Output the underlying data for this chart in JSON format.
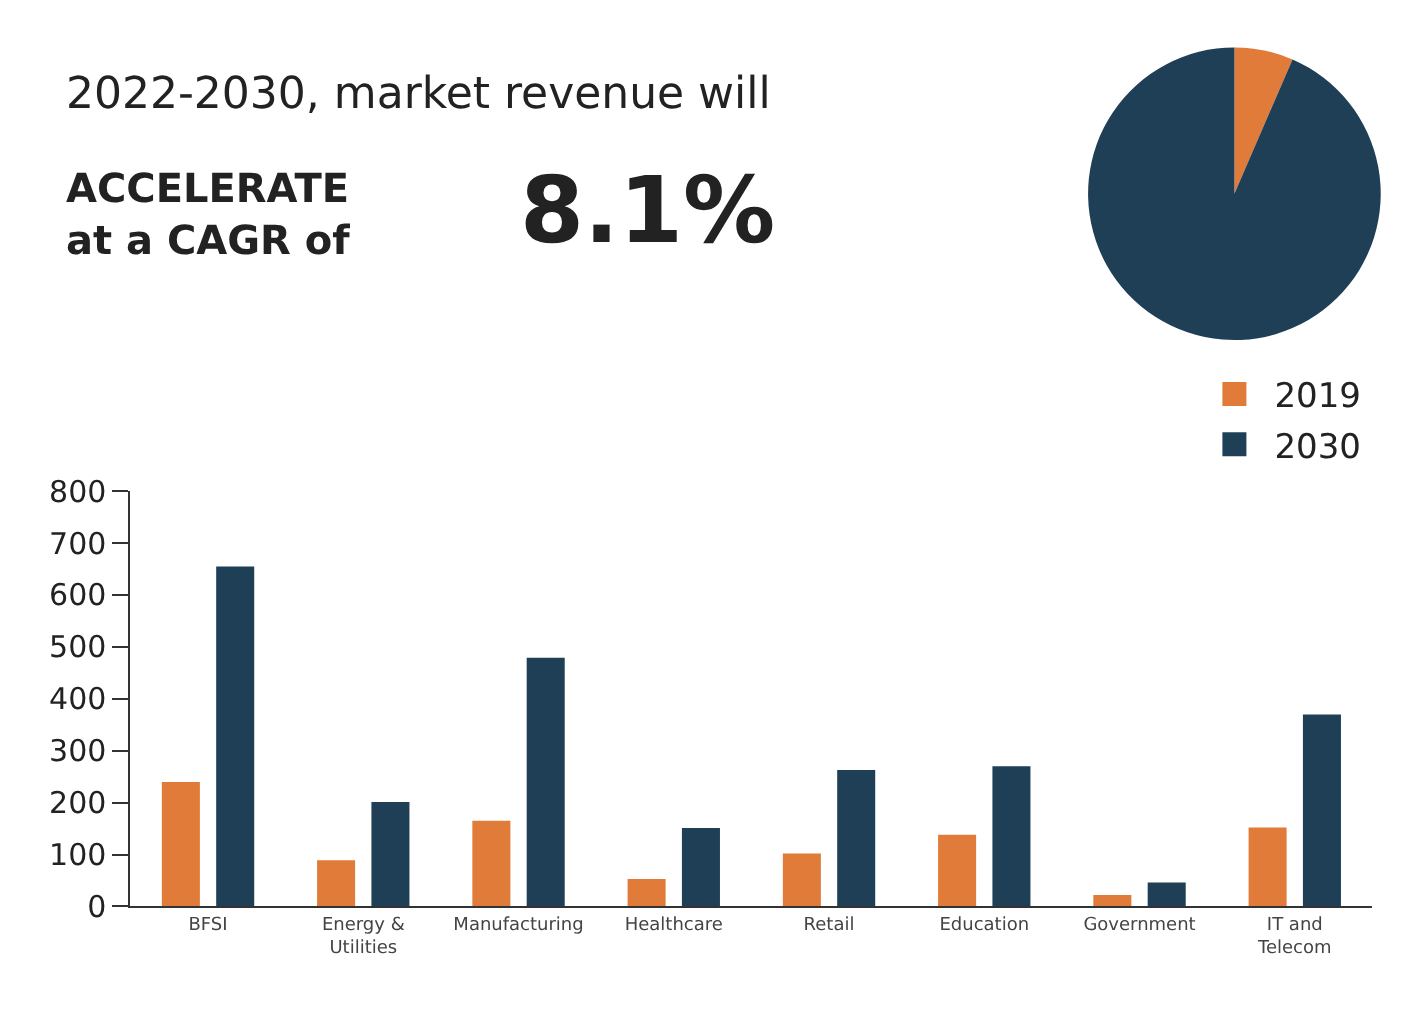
{
  "chart_data": [
    {
      "type": "pie",
      "categories": [
        null,
        null
      ],
      "values": [
        6.5,
        93.5
      ],
      "colors": [
        "#e07b39",
        "#1f3f57"
      ],
      "annotations": [
        "2022-2030, market revenue will",
        "ACCELERATE\nat a CAGR of",
        "8.1%"
      ]
    },
    {
      "type": "bar",
      "categories": [
        "BFSI",
        "Energy &\nUtilities",
        "Manufacturing",
        "Healthcare",
        "Retail",
        "Education",
        "Government",
        "IT and\nTelecom"
      ],
      "series": [
        {
          "name": "2019",
          "color": "#e07b39",
          "values": [
            240,
            89,
            165,
            53,
            102,
            138,
            22,
            152
          ]
        },
        {
          "name": "2030",
          "color": "#1f3f57",
          "values": [
            655,
            201,
            479,
            151,
            263,
            270,
            46,
            370
          ]
        }
      ],
      "ylim": [
        0,
        800
      ],
      "yticks": [
        0,
        100,
        200,
        300,
        400,
        500,
        600,
        700,
        800
      ],
      "grid": false,
      "legend": "top right"
    }
  ]
}
